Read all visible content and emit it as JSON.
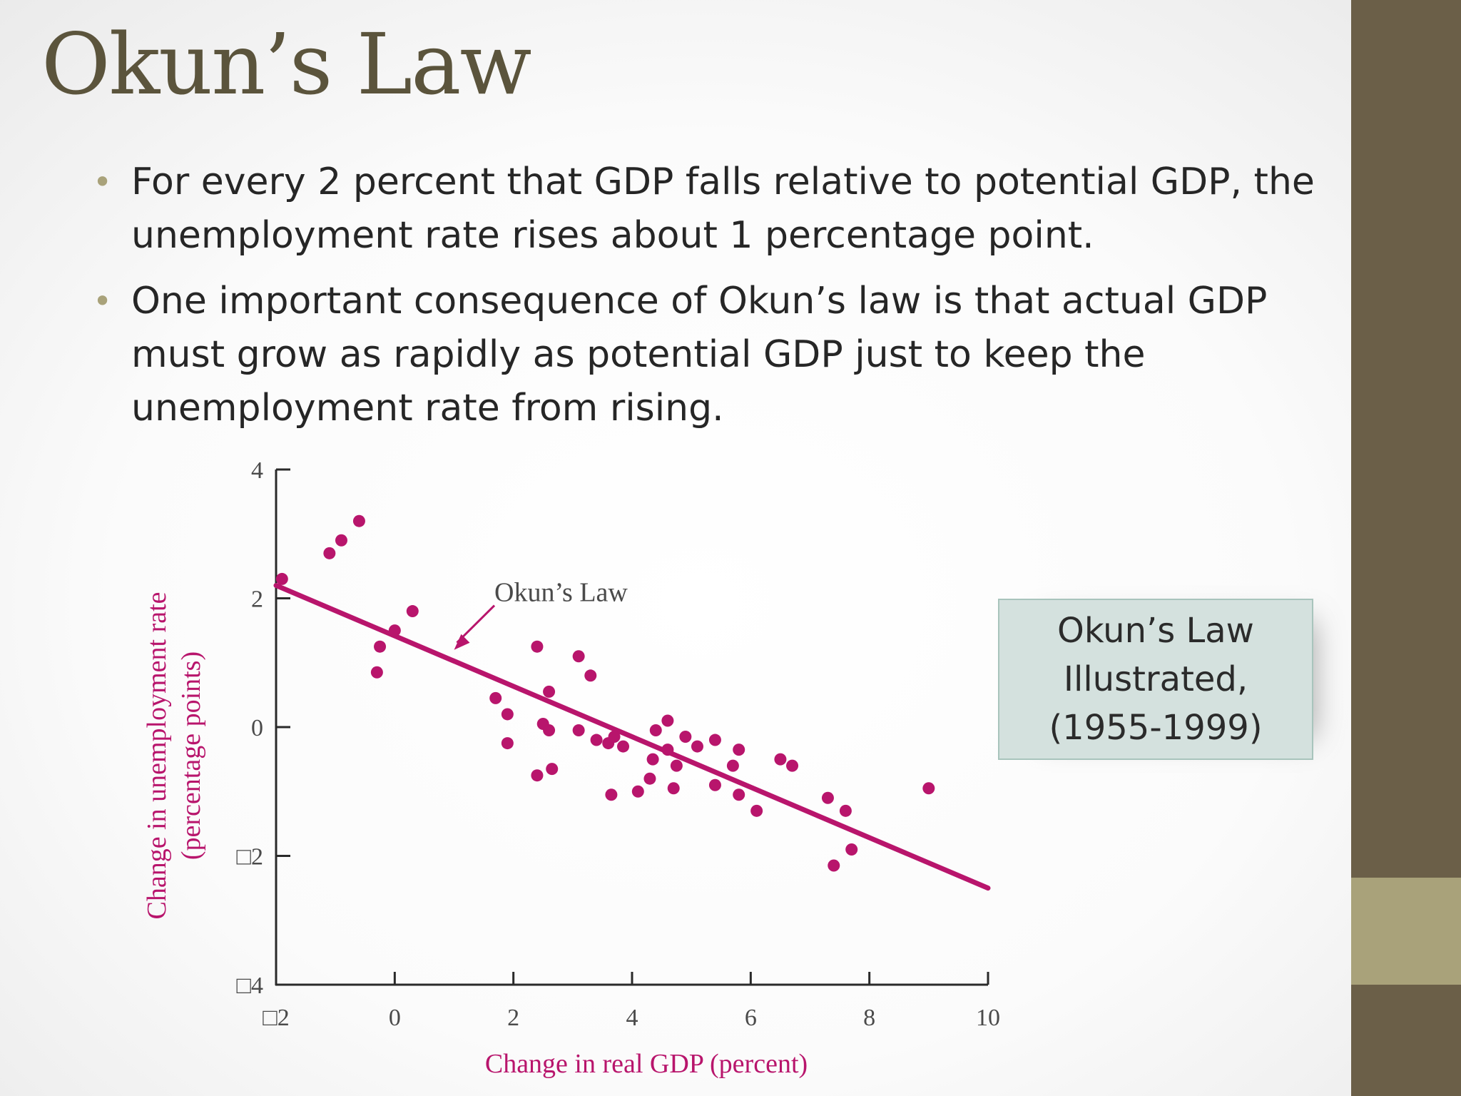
{
  "slide": {
    "title": "Okun’s Law",
    "bullets": [
      "For every 2 percent that GDP falls relative to potential GDP, the unemployment rate rises about 1 percentage point.",
      "One important consequence of Okun’s law is that actual GDP must grow as rapidly as potential GDP just to keep the unemployment rate from rising."
    ],
    "callout": [
      "Okun’s Law",
      "Illustrated,",
      "(1955-1999)"
    ],
    "colors": {
      "sidebar": "#6b5f48",
      "accent": "#a9a27a",
      "title": "#5b543c",
      "data": "#b8156c"
    }
  },
  "chart_data": {
    "type": "scatter",
    "xlabel": "Change in real GDP (percent)",
    "ylabel": "Change in unemployment rate",
    "ylabel2": "(percentage points)",
    "xlim": [
      -2,
      10
    ],
    "ylim": [
      -4,
      4
    ],
    "x_ticks": [
      -2,
      0,
      2,
      4,
      6,
      8,
      10
    ],
    "x_tick_labels": [
      "□2",
      "0",
      "2",
      "4",
      "6",
      "8",
      "10"
    ],
    "y_ticks": [
      -4,
      -2,
      0,
      2,
      4
    ],
    "y_tick_labels": [
      "□4",
      "□2",
      "0",
      "2",
      "4"
    ],
    "grid": false,
    "series": [
      {
        "name": "",
        "points": [
          [
            -1.9,
            2.3
          ],
          [
            -1.1,
            2.7
          ],
          [
            -0.9,
            2.9
          ],
          [
            -0.6,
            3.2
          ],
          [
            -0.3,
            0.85
          ],
          [
            -0.25,
            1.25
          ],
          [
            0.0,
            1.5
          ],
          [
            0.3,
            1.8
          ],
          [
            1.7,
            0.45
          ],
          [
            1.9,
            0.2
          ],
          [
            1.9,
            -0.25
          ],
          [
            2.4,
            1.25
          ],
          [
            2.4,
            -0.75
          ],
          [
            2.5,
            0.05
          ],
          [
            2.6,
            0.55
          ],
          [
            2.6,
            -0.05
          ],
          [
            2.65,
            -0.65
          ],
          [
            3.1,
            1.1
          ],
          [
            3.1,
            -0.05
          ],
          [
            3.3,
            0.8
          ],
          [
            3.4,
            -0.2
          ],
          [
            3.6,
            -0.25
          ],
          [
            3.65,
            -1.05
          ],
          [
            3.7,
            -0.15
          ],
          [
            3.85,
            -0.3
          ],
          [
            4.1,
            -1.0
          ],
          [
            4.3,
            -0.8
          ],
          [
            4.35,
            -0.5
          ],
          [
            4.4,
            -0.05
          ],
          [
            4.6,
            0.1
          ],
          [
            4.6,
            -0.35
          ],
          [
            4.7,
            -0.95
          ],
          [
            4.75,
            -0.6
          ],
          [
            4.9,
            -0.15
          ],
          [
            5.1,
            -0.3
          ],
          [
            5.4,
            -0.2
          ],
          [
            5.4,
            -0.9
          ],
          [
            5.7,
            -0.6
          ],
          [
            5.8,
            -1.05
          ],
          [
            5.8,
            -0.35
          ],
          [
            6.1,
            -1.3
          ],
          [
            6.5,
            -0.5
          ],
          [
            6.7,
            -0.6
          ],
          [
            7.3,
            -1.1
          ],
          [
            7.4,
            -2.15
          ],
          [
            7.6,
            -1.3
          ],
          [
            7.7,
            -1.9
          ],
          [
            9.0,
            -0.95
          ]
        ]
      }
    ],
    "fit_line": {
      "label": "Okun’s Law",
      "from": [
        -2,
        2.2
      ],
      "to": [
        10,
        -2.5
      ]
    }
  }
}
